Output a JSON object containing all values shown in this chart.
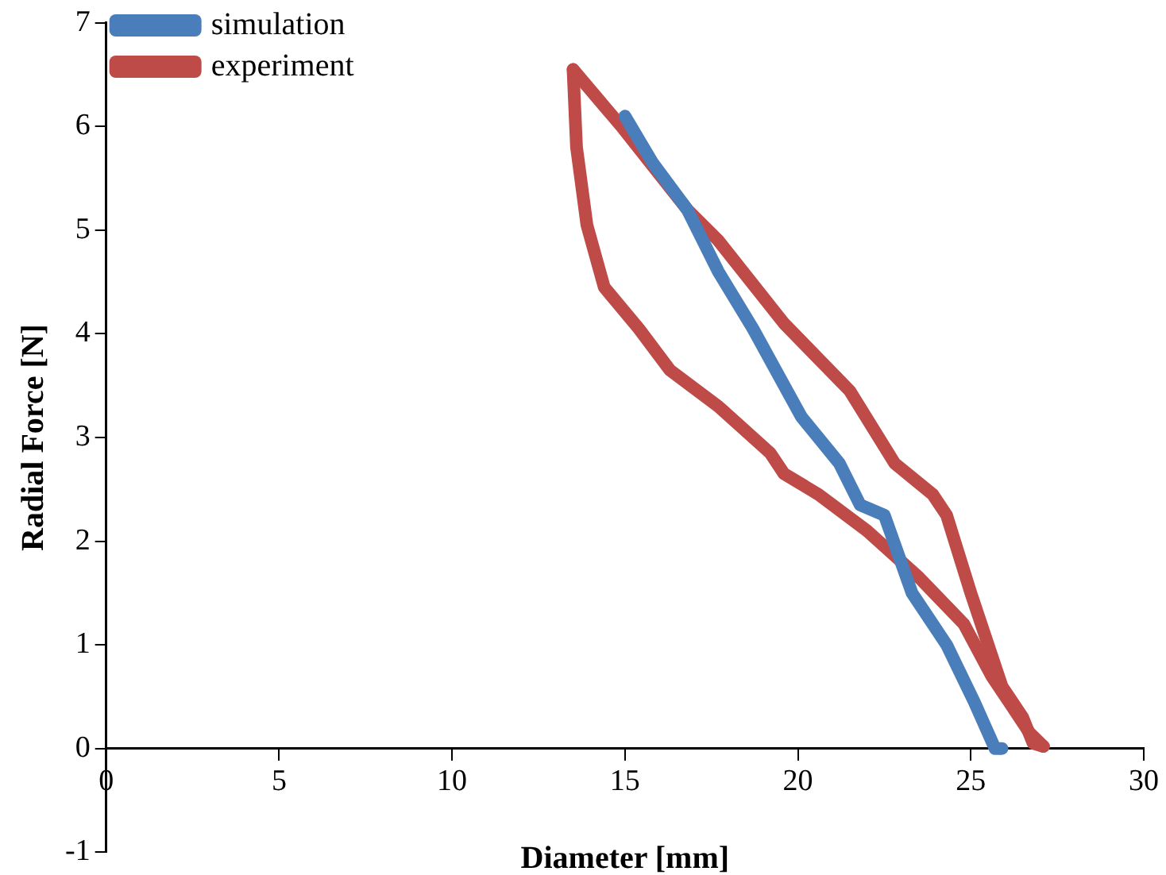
{
  "chart_data": {
    "type": "line",
    "xlabel": "Diameter [mm]",
    "ylabel": "Radial Force [N]",
    "xlim": [
      0,
      30
    ],
    "xticks": [
      0,
      5,
      10,
      15,
      20,
      25,
      30
    ],
    "ylim": [
      -1,
      7
    ],
    "yticks": [
      -1,
      0,
      1,
      2,
      3,
      4,
      5,
      6,
      7
    ],
    "grid": false,
    "legend": "top left",
    "marker": "none",
    "line_style": "solid",
    "series": [
      {
        "name": "simulation",
        "color": "#4a7ebb",
        "x": [
          15.0,
          15.8,
          16.8,
          17.7,
          18.7,
          20.1,
          21.2,
          21.8,
          22.5,
          23.3,
          24.3,
          25.1,
          25.7,
          25.9
        ],
        "values": [
          6.1,
          5.65,
          5.2,
          4.6,
          4.05,
          3.2,
          2.75,
          2.35,
          2.25,
          1.5,
          1.0,
          0.45,
          0.0,
          0.0
        ]
      },
      {
        "name": "experiment",
        "color": "#be4b48",
        "x": [
          13.5,
          14.9,
          16.8,
          17.7,
          19.6,
          21.5,
          22.8,
          23.9,
          24.3,
          25.0,
          25.9,
          26.5,
          26.8,
          27.1
        ],
        "values": [
          6.55,
          6.0,
          5.2,
          4.9,
          4.1,
          3.45,
          2.75,
          2.45,
          2.25,
          1.5,
          0.6,
          0.3,
          0.05,
          0.02
        ]
      },
      {
        "color": "#be4b48",
        "x": [
          13.5,
          13.6,
          13.9,
          14.4,
          15.4,
          16.3,
          17.7,
          19.2,
          19.6,
          20.6,
          22.0,
          23.5,
          24.8,
          25.6,
          26.2,
          26.7,
          27.1
        ],
        "values": [
          6.55,
          5.8,
          5.05,
          4.45,
          4.05,
          3.65,
          3.3,
          2.85,
          2.65,
          2.45,
          2.1,
          1.65,
          1.2,
          0.7,
          0.4,
          0.15,
          0.02
        ]
      }
    ]
  }
}
